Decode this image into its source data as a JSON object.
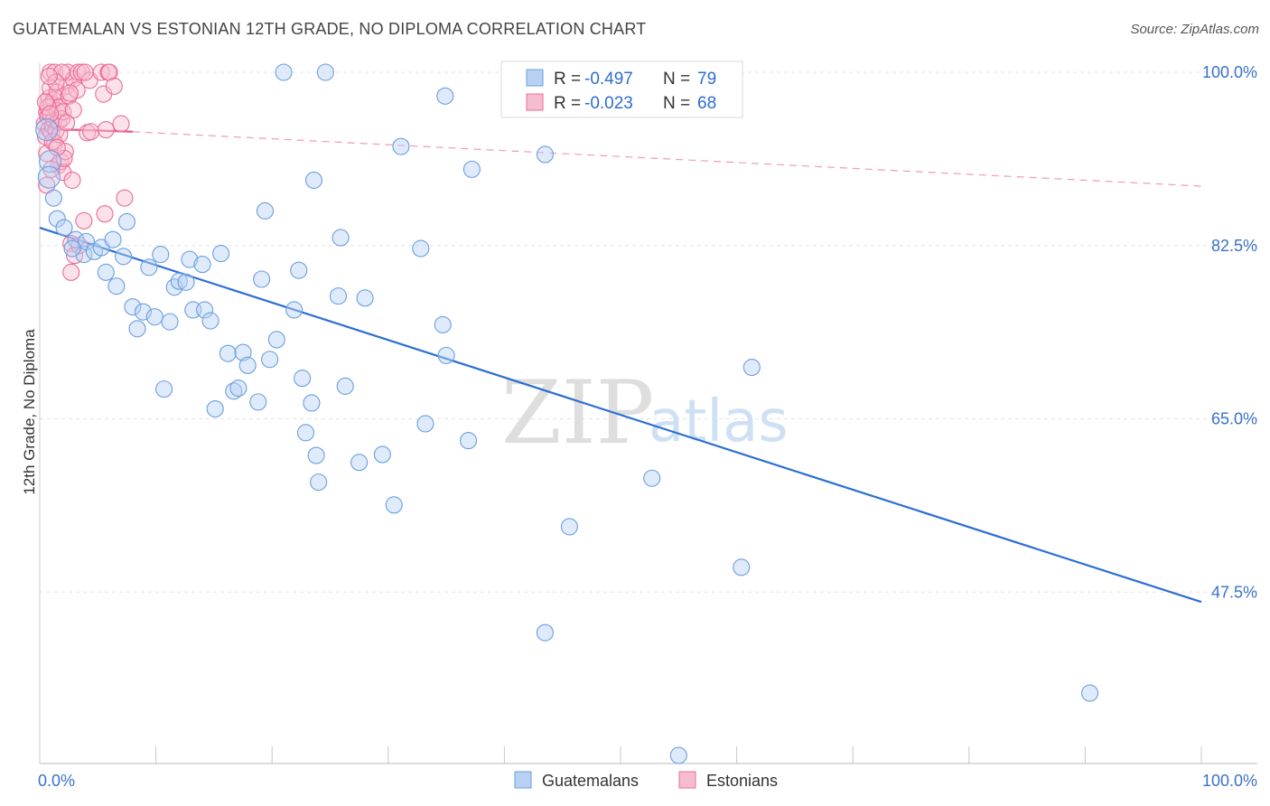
{
  "title": "GUATEMALAN VS ESTONIAN 12TH GRADE, NO DIPLOMA CORRELATION CHART",
  "source": "Source: ZipAtlas.com",
  "watermark": {
    "zip": "ZIP",
    "atlas": "atlas"
  },
  "colors": {
    "blue": "#6a9fe0",
    "blue_fill": "#b8d1f3",
    "blue_line": "#2b6fd3",
    "pink": "#ec6b96",
    "pink_fill": "#f6bcd0",
    "pink_line": "#e8578a"
  },
  "legend_top": [
    {
      "r_label": "R = ",
      "r_value": "-0.497",
      "n_label": "N = ",
      "n_value": "79",
      "color": "blue"
    },
    {
      "r_label": "R = ",
      "r_value": "-0.023",
      "n_label": "N = ",
      "n_value": "68",
      "color": "pink"
    }
  ],
  "legend_bottom": [
    {
      "label": "Guatemalans",
      "color": "blue"
    },
    {
      "label": "Estonians",
      "color": "pink"
    }
  ],
  "chart_data": {
    "type": "scatter",
    "title": "GUATEMALAN VS ESTONIAN 12TH GRADE, NO DIPLOMA CORRELATION CHART",
    "xlabel": "",
    "ylabel": "12th Grade, No Diploma",
    "xlim": [
      0,
      100
    ],
    "ylim": [
      32,
      102
    ],
    "x_tick_labels": [
      "0.0%",
      "100.0%"
    ],
    "y_ticks": [
      100.0,
      82.5,
      65.0,
      47.5
    ],
    "y_tick_labels": [
      "100.0%",
      "82.5%",
      "65.0%",
      "47.5%"
    ],
    "grid": true,
    "legend_position": "top-center",
    "series": [
      {
        "name": "Guatemalans",
        "color": "blue",
        "r": -0.497,
        "n": 79,
        "trend": {
          "x": [
            0,
            100
          ],
          "y": [
            84.3,
            46.5
          ]
        },
        "points": [
          [
            0.6,
            94.2
          ],
          [
            0.9,
            91.0
          ],
          [
            0.8,
            89.4
          ],
          [
            1.2,
            87.3
          ],
          [
            1.5,
            85.2
          ],
          [
            2.1,
            84.3
          ],
          [
            3.1,
            83.1
          ],
          [
            3.8,
            81.6
          ],
          [
            4.0,
            82.9
          ],
          [
            4.7,
            81.9
          ],
          [
            5.3,
            82.3
          ],
          [
            5.7,
            79.8
          ],
          [
            6.3,
            83.1
          ],
          [
            6.6,
            78.4
          ],
          [
            7.2,
            81.4
          ],
          [
            7.5,
            84.9
          ],
          [
            8.0,
            76.3
          ],
          [
            8.4,
            74.1
          ],
          [
            8.9,
            75.8
          ],
          [
            9.4,
            80.3
          ],
          [
            9.9,
            75.3
          ],
          [
            10.4,
            81.6
          ],
          [
            10.7,
            68.0
          ],
          [
            11.2,
            74.8
          ],
          [
            11.6,
            78.3
          ],
          [
            12.0,
            78.9
          ],
          [
            12.6,
            78.8
          ],
          [
            12.9,
            81.1
          ],
          [
            13.2,
            76.0
          ],
          [
            14.0,
            80.6
          ],
          [
            14.2,
            76.0
          ],
          [
            14.7,
            74.9
          ],
          [
            15.1,
            66.0
          ],
          [
            15.6,
            81.7
          ],
          [
            16.2,
            71.6
          ],
          [
            16.7,
            67.8
          ],
          [
            17.1,
            68.1
          ],
          [
            17.5,
            71.7
          ],
          [
            17.9,
            70.4
          ],
          [
            18.8,
            66.7
          ],
          [
            19.1,
            79.1
          ],
          [
            19.4,
            86.0
          ],
          [
            19.8,
            71.0
          ],
          [
            20.4,
            73.0
          ],
          [
            21.0,
            100.0
          ],
          [
            21.9,
            76.0
          ],
          [
            22.3,
            80.0
          ],
          [
            22.6,
            69.1
          ],
          [
            22.9,
            63.6
          ],
          [
            23.4,
            66.6
          ],
          [
            23.8,
            61.3
          ],
          [
            23.6,
            89.1
          ],
          [
            24.0,
            58.6
          ],
          [
            24.6,
            100.0
          ],
          [
            25.7,
            77.4
          ],
          [
            25.9,
            83.3
          ],
          [
            26.3,
            68.3
          ],
          [
            28.0,
            77.2
          ],
          [
            27.5,
            60.6
          ],
          [
            29.5,
            61.4
          ],
          [
            30.5,
            56.3
          ],
          [
            31.1,
            92.5
          ],
          [
            32.8,
            82.2
          ],
          [
            33.2,
            64.5
          ],
          [
            34.7,
            74.5
          ],
          [
            35.0,
            71.4
          ],
          [
            34.9,
            97.6
          ],
          [
            36.9,
            62.8
          ],
          [
            37.2,
            90.2
          ],
          [
            43.5,
            91.7
          ],
          [
            43.5,
            43.4
          ],
          [
            45.6,
            54.1
          ],
          [
            52.7,
            59.0
          ],
          [
            56.3,
            100.0
          ],
          [
            60.4,
            50.0
          ],
          [
            61.3,
            70.2
          ],
          [
            90.4,
            37.3
          ],
          [
            55.0,
            31.0
          ],
          [
            2.8,
            82.2
          ]
        ]
      },
      {
        "name": "Estonians",
        "color": "pink",
        "r": -0.023,
        "n": 68,
        "trend": {
          "x": [
            0,
            8
          ],
          "y": [
            94.3,
            94.0
          ],
          "x_ext": [
            8,
            100
          ],
          "y_ext": [
            94.0,
            88.5
          ]
        },
        "points": [
          [
            0.4,
            94.8
          ],
          [
            0.5,
            93.5
          ],
          [
            0.6,
            96.0
          ],
          [
            0.6,
            91.8
          ],
          [
            0.7,
            95.5
          ],
          [
            0.8,
            94.2
          ],
          [
            0.8,
            97.4
          ],
          [
            0.9,
            98.4
          ],
          [
            0.9,
            100.0
          ],
          [
            1.0,
            93.9
          ],
          [
            1.0,
            96.8
          ],
          [
            1.1,
            94.6
          ],
          [
            1.2,
            95.2
          ],
          [
            1.2,
            97.2
          ],
          [
            1.3,
            92.9
          ],
          [
            1.3,
            100.0
          ],
          [
            1.4,
            94.1
          ],
          [
            1.5,
            96.1
          ],
          [
            1.5,
            98.0
          ],
          [
            1.6,
            95.0
          ],
          [
            1.6,
            90.6
          ],
          [
            1.7,
            96.5
          ],
          [
            1.8,
            91.0
          ],
          [
            1.9,
            95.3
          ],
          [
            2.0,
            96.0
          ],
          [
            2.0,
            89.9
          ],
          [
            2.2,
            92.0
          ],
          [
            2.3,
            98.6
          ],
          [
            2.4,
            100.0
          ],
          [
            2.5,
            97.6
          ],
          [
            2.7,
            82.7
          ],
          [
            2.7,
            79.8
          ],
          [
            2.8,
            89.1
          ],
          [
            2.9,
            99.3
          ],
          [
            3.0,
            81.5
          ],
          [
            3.2,
            98.2
          ],
          [
            3.3,
            100.0
          ],
          [
            3.6,
            100.0
          ],
          [
            3.8,
            85.0
          ],
          [
            4.1,
            93.9
          ],
          [
            4.3,
            99.2
          ],
          [
            4.4,
            94.0
          ],
          [
            5.3,
            100.0
          ],
          [
            5.5,
            97.8
          ],
          [
            5.6,
            85.7
          ],
          [
            5.7,
            94.2
          ],
          [
            5.9,
            100.0
          ],
          [
            6.0,
            100.0
          ],
          [
            6.4,
            98.6
          ],
          [
            7.0,
            94.8
          ],
          [
            7.3,
            87.3
          ],
          [
            0.6,
            88.6
          ],
          [
            1.1,
            93.0
          ],
          [
            0.7,
            96.5
          ],
          [
            1.9,
            100.0
          ],
          [
            2.6,
            97.9
          ],
          [
            3.4,
            82.5
          ],
          [
            1.0,
            90.2
          ],
          [
            0.5,
            97.0
          ],
          [
            1.4,
            99.0
          ],
          [
            2.1,
            91.3
          ],
          [
            0.8,
            99.6
          ],
          [
            1.7,
            93.7
          ],
          [
            2.9,
            96.2
          ],
          [
            3.9,
            100.0
          ],
          [
            0.9,
            95.8
          ],
          [
            1.5,
            92.4
          ],
          [
            2.3,
            94.9
          ]
        ]
      }
    ]
  }
}
